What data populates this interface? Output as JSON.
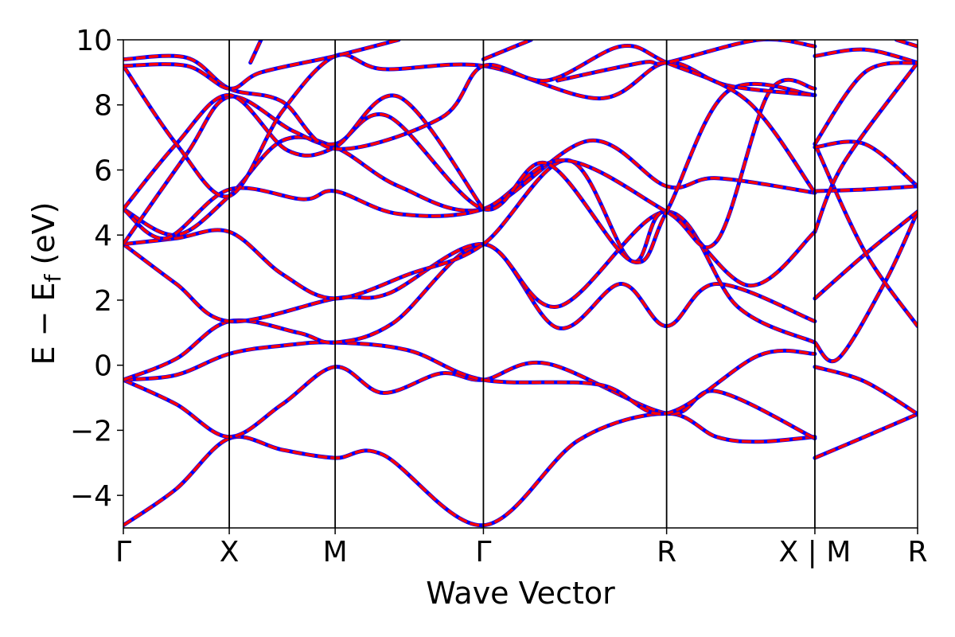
{
  "chart_data": {
    "type": "line",
    "xlabel": "Wave Vector",
    "ylabel": {
      "main": "E − E",
      "subscript": "f",
      "unit": " (eV)"
    },
    "ylim": [
      -5,
      10
    ],
    "xlim": [
      0,
      7.5
    ],
    "y_ticks": [
      "−4",
      "−2",
      "0",
      "2",
      "4",
      "6",
      "8",
      "10"
    ],
    "y_tick_values": [
      -4,
      -2,
      0,
      2,
      4,
      6,
      8,
      10
    ],
    "k_points": [
      {
        "label": "Γ",
        "x": 0
      },
      {
        "label": "X",
        "x": 1
      },
      {
        "label": "M",
        "x": 2
      },
      {
        "label": "Γ",
        "x": 3.4
      },
      {
        "label": "R",
        "x": 5.13
      },
      {
        "label": "X | M",
        "x": 6.53
      },
      {
        "label": "R",
        "x": 7.5
      }
    ],
    "colors": {
      "primary": "#ff0000",
      "secondary": "#0000ff",
      "axis": "#000000"
    },
    "series": [
      {
        "points": [
          [
            0,
            -4.92
          ],
          [
            0.5,
            -3.8
          ],
          [
            1,
            -2.25
          ],
          [
            1.5,
            -2.6
          ],
          [
            2,
            -2.85
          ],
          [
            2.45,
            -2.75
          ],
          [
            3.4,
            -4.92
          ],
          [
            4.3,
            -2.3
          ],
          [
            5.13,
            -1.48
          ],
          [
            5.6,
            -2.2
          ],
          [
            6.0,
            -2.35
          ],
          [
            6.53,
            -2.2
          ]
        ]
      },
      {
        "points": [
          [
            0,
            -0.45
          ],
          [
            0.5,
            -1.2
          ],
          [
            1,
            -2.2
          ],
          [
            1.5,
            -1.2
          ],
          [
            2,
            -0.05
          ],
          [
            2.45,
            -0.85
          ],
          [
            3.0,
            -0.25
          ],
          [
            3.4,
            -0.45
          ],
          [
            4.0,
            0.05
          ],
          [
            5.13,
            -1.48
          ],
          [
            5.6,
            -0.8
          ],
          [
            6.53,
            -2.25
          ]
        ]
      },
      {
        "points": [
          [
            0,
            -0.45
          ],
          [
            0.5,
            -0.3
          ],
          [
            1,
            0.35
          ],
          [
            1.5,
            0.6
          ],
          [
            2,
            0.7
          ],
          [
            2.7,
            0.45
          ],
          [
            3.4,
            -0.45
          ],
          [
            4.5,
            -0.6
          ],
          [
            5.13,
            -1.48
          ],
          [
            6.0,
            0.3
          ],
          [
            6.53,
            0.35
          ]
        ]
      },
      {
        "points": [
          [
            0,
            -0.45
          ],
          [
            0.5,
            0.2
          ],
          [
            1,
            1.35
          ],
          [
            1.65,
            1.0
          ],
          [
            2,
            0.7
          ],
          [
            2.55,
            1.3
          ],
          [
            3.4,
            3.72
          ],
          [
            4.1,
            1.15
          ],
          [
            4.7,
            2.5
          ],
          [
            5.13,
            1.2
          ],
          [
            5.6,
            2.5
          ],
          [
            6.53,
            1.35
          ]
        ]
      },
      {
        "points": [
          [
            0,
            3.72
          ],
          [
            0.5,
            2.5
          ],
          [
            1,
            1.35
          ],
          [
            2,
            2.05
          ],
          [
            2.5,
            2.2
          ],
          [
            3.4,
            3.72
          ],
          [
            4.1,
            1.8
          ],
          [
            5.13,
            4.72
          ],
          [
            5.8,
            1.8
          ],
          [
            6.53,
            0.7
          ]
        ]
      },
      {
        "points": [
          [
            0,
            3.72
          ],
          [
            0.5,
            3.9
          ],
          [
            1,
            4.1
          ],
          [
            1.5,
            2.8
          ],
          [
            2,
            2.05
          ],
          [
            2.7,
            2.8
          ],
          [
            3.4,
            3.72
          ],
          [
            4.2,
            6.3
          ],
          [
            4.8,
            3.2
          ],
          [
            5.13,
            4.72
          ],
          [
            5.9,
            2.45
          ],
          [
            6.53,
            4.1
          ]
        ]
      },
      {
        "points": [
          [
            0,
            4.8
          ],
          [
            0.5,
            4.0
          ],
          [
            1,
            5.2
          ],
          [
            1.5,
            6.9
          ],
          [
            2,
            6.7
          ],
          [
            2.6,
            5.5
          ],
          [
            3.4,
            4.8
          ],
          [
            4.4,
            6.9
          ],
          [
            5.13,
            5.5
          ],
          [
            5.6,
            5.75
          ],
          [
            6.53,
            5.3
          ]
        ]
      },
      {
        "points": [
          [
            0,
            4.8
          ],
          [
            0.4,
            3.9
          ],
          [
            1,
            5.4
          ],
          [
            1.7,
            5.1
          ],
          [
            2,
            5.35
          ],
          [
            2.6,
            4.65
          ],
          [
            3.4,
            4.8
          ],
          [
            4.15,
            6.3
          ],
          [
            5.13,
            4.72
          ],
          [
            5.6,
            3.8
          ],
          [
            6.1,
            8.4
          ],
          [
            6.53,
            8.5
          ]
        ]
      },
      {
        "points": [
          [
            0,
            3.72
          ],
          [
            0.6,
            6.5
          ],
          [
            1,
            8.25
          ],
          [
            1.6,
            7.2
          ],
          [
            2,
            6.8
          ],
          [
            2.5,
            7.65
          ],
          [
            3.4,
            4.8
          ],
          [
            4.0,
            6.2
          ],
          [
            4.8,
            3.2
          ],
          [
            5.13,
            4.72
          ],
          [
            5.7,
            8.4
          ],
          [
            6.53,
            8.3
          ]
        ]
      },
      {
        "points": [
          [
            0,
            4.8
          ],
          [
            0.5,
            6.8
          ],
          [
            1,
            8.3
          ],
          [
            1.55,
            6.6
          ],
          [
            2,
            6.7
          ],
          [
            2.6,
            8.25
          ],
          [
            3.4,
            4.8
          ]
        ]
      },
      {
        "points": [
          [
            0,
            9.2
          ],
          [
            0.5,
            6.8
          ],
          [
            1,
            5.2
          ],
          [
            1.5,
            7.8
          ],
          [
            2,
            9.5
          ],
          [
            2.45,
            9.1
          ],
          [
            3.4,
            9.2
          ],
          [
            4.5,
            8.2
          ],
          [
            5.13,
            9.3
          ],
          [
            5.7,
            8.6
          ],
          [
            6.53,
            8.3
          ]
        ]
      },
      {
        "points": [
          [
            0,
            9.4
          ],
          [
            0.6,
            9.45
          ],
          [
            1,
            8.5
          ],
          [
            1.5,
            8.1
          ],
          [
            2,
            6.65
          ],
          [
            3.0,
            7.6
          ],
          [
            3.4,
            9.2
          ],
          [
            4.0,
            8.75
          ],
          [
            4.7,
            9.8
          ],
          [
            5.13,
            9.3
          ],
          [
            5.9,
            8.1
          ],
          [
            6.53,
            5.3
          ]
        ]
      },
      {
        "points": [
          [
            0,
            9.2
          ],
          [
            0.6,
            9.2
          ],
          [
            1,
            8.5
          ],
          [
            1.3,
            9.0
          ],
          [
            2,
            9.5
          ],
          [
            2.6,
            10.0
          ]
        ]
      },
      {
        "points": [
          [
            1.2,
            9.3
          ],
          [
            1.3,
            10.0
          ]
        ]
      },
      {
        "points": [
          [
            3.4,
            9.4
          ],
          [
            3.85,
            10.0
          ]
        ]
      },
      {
        "points": [
          [
            4.1,
            8.75
          ],
          [
            4.9,
            9.3
          ],
          [
            5.13,
            9.3
          ],
          [
            6.0,
            10.0
          ],
          [
            6.53,
            9.8
          ]
        ]
      },
      {
        "points": [
          [
            6.53,
            -2.85
          ],
          [
            7.0,
            -2.2
          ],
          [
            7.5,
            -1.5
          ]
        ]
      },
      {
        "points": [
          [
            6.53,
            -0.05
          ],
          [
            7.0,
            -0.5
          ],
          [
            7.5,
            -1.5
          ]
        ]
      },
      {
        "points": [
          [
            6.53,
            0.7
          ],
          [
            6.75,
            0.2
          ],
          [
            7.2,
            2.6
          ],
          [
            7.5,
            4.72
          ]
        ]
      },
      {
        "points": [
          [
            6.53,
            2.05
          ],
          [
            7.0,
            3.4
          ],
          [
            7.5,
            4.72
          ]
        ]
      },
      {
        "points": [
          [
            6.53,
            6.8
          ],
          [
            7.0,
            3.5
          ],
          [
            7.5,
            1.2
          ]
        ]
      },
      {
        "points": [
          [
            6.53,
            6.7
          ],
          [
            7.0,
            6.8
          ],
          [
            7.5,
            5.5
          ]
        ]
      },
      {
        "points": [
          [
            6.53,
            5.35
          ],
          [
            7.0,
            5.4
          ],
          [
            7.5,
            5.5
          ]
        ]
      },
      {
        "points": [
          [
            6.53,
            4.1
          ],
          [
            6.8,
            6.2
          ],
          [
            7.5,
            9.3
          ]
        ]
      },
      {
        "points": [
          [
            6.53,
            9.5
          ],
          [
            7.0,
            9.7
          ],
          [
            7.5,
            9.3
          ]
        ]
      },
      {
        "points": [
          [
            6.53,
            6.8
          ],
          [
            7.0,
            9.0
          ],
          [
            7.5,
            9.3
          ]
        ]
      },
      {
        "points": [
          [
            7.3,
            10.0
          ],
          [
            7.5,
            9.8
          ]
        ]
      }
    ]
  }
}
